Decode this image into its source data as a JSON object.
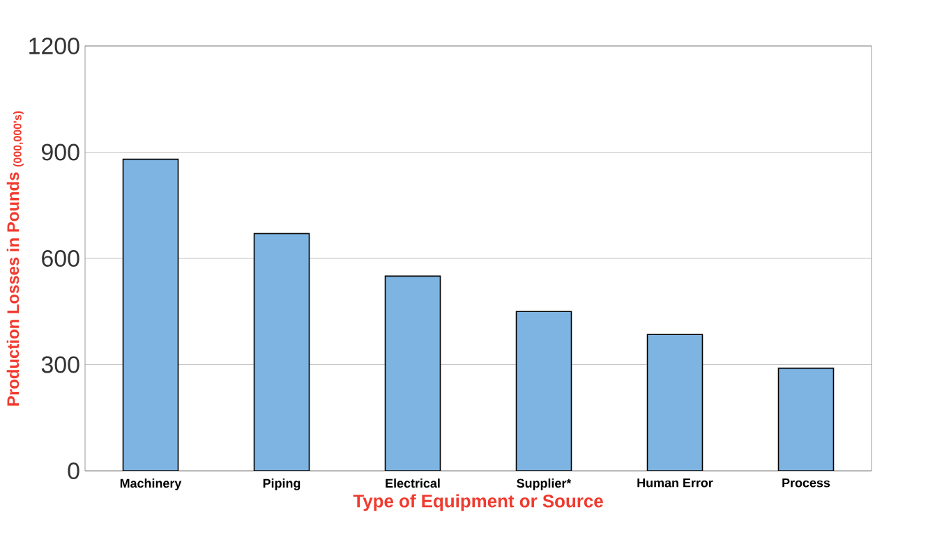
{
  "chart_data": {
    "type": "bar",
    "categories": [
      "Machinery",
      "Piping",
      "Electrical",
      "Supplier*",
      "Human Error",
      "Process"
    ],
    "values": [
      880,
      670,
      550,
      450,
      385,
      290
    ],
    "color": "#7eb4e2",
    "xlabel": "Type of Equipment or Source",
    "ylabel": "Production Losses in Pounds $_{(000,000's)}$",
    "ylim": [
      0,
      1200
    ],
    "yticks": [
      0,
      300,
      600,
      900,
      1200
    ],
    "grid": "y"
  }
}
